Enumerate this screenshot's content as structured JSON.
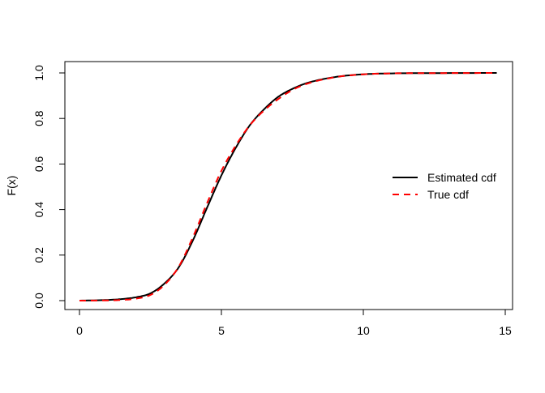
{
  "chart_data": {
    "type": "line",
    "title": "",
    "xlabel": "",
    "ylabel": "F(x)",
    "xlim": [
      0,
      15
    ],
    "ylim": [
      0,
      1
    ],
    "xticks": [
      0,
      5,
      10,
      15
    ],
    "yticks": [
      "0.0",
      "0.2",
      "0.4",
      "0.6",
      "0.8",
      "1.0"
    ],
    "grid": false,
    "legend_position": "right",
    "series": [
      {
        "name": "Estimated cdf",
        "color": "#000000",
        "line_style": "solid",
        "x": [
          0,
          1,
          1.5,
          2,
          2.5,
          3,
          3.5,
          4,
          4.5,
          5,
          5.5,
          6,
          6.5,
          7,
          7.5,
          8,
          9,
          10,
          11,
          12,
          14.7
        ],
        "y": [
          0.0,
          0.003,
          0.007,
          0.015,
          0.032,
          0.076,
          0.147,
          0.266,
          0.41,
          0.55,
          0.67,
          0.77,
          0.84,
          0.895,
          0.93,
          0.955,
          0.982,
          0.994,
          0.998,
          0.999,
          1.0
        ]
      },
      {
        "name": "True cdf",
        "color": "#ff0000",
        "line_style": "dashed",
        "x": [
          0,
          1,
          1.5,
          2,
          2.5,
          3,
          3.5,
          4,
          4.5,
          5,
          5.5,
          6,
          6.5,
          7,
          7.5,
          8,
          9,
          10,
          11,
          12,
          14.7
        ],
        "y": [
          0.0,
          0.001,
          0.003,
          0.009,
          0.025,
          0.07,
          0.15,
          0.28,
          0.43,
          0.57,
          0.68,
          0.77,
          0.835,
          0.885,
          0.925,
          0.952,
          0.981,
          0.994,
          0.998,
          0.999,
          1.0
        ]
      }
    ]
  }
}
